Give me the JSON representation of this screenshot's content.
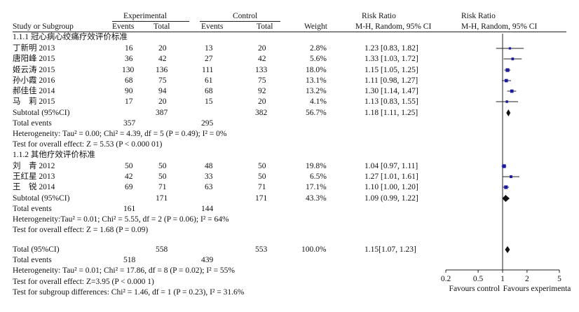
{
  "header": {
    "experimental": "Experimental",
    "control": "Control",
    "risk_ratio": "Risk Ratio",
    "risk_ratio_plot": "Risk Ratio",
    "study": "Study or Subgroup",
    "events_e": "Events",
    "total_e": "Total",
    "events_c": "Events",
    "total_c": "Total",
    "weight": "Weight",
    "method": "M-H, Random, 95% CI",
    "method_plot": "M-H, Random, 95% CI"
  },
  "groups": [
    {
      "title": "1.1.1  冠心病心绞痛疗效评价标准",
      "studies": [
        {
          "name": "丁新明 2013",
          "ee": "16",
          "te": "20",
          "ec": "13",
          "tc": "20",
          "w": "2.8%",
          "ci": "1.23 [0.83, 1.82]"
        },
        {
          "name": "唐阳峰 2015",
          "ee": "36",
          "te": "42",
          "ec": "27",
          "tc": "42",
          "w": "5.6%",
          "ci": "1.33 [1.03, 1.72]"
        },
        {
          "name": "姬云涛 2015",
          "ee": "130",
          "te": "136",
          "ec": "111",
          "tc": "133",
          "w": "18.0%",
          "ci": "1.15 [1.05, 1.25]"
        },
        {
          "name": "孙小霞 2016",
          "ee": "68",
          "te": "75",
          "ec": "61",
          "tc": "75",
          "w": "13.1%",
          "ci": "1.11 [0.98, 1.27]"
        },
        {
          "name": "郝佳佳 2014",
          "ee": "90",
          "te": "94",
          "ec": "68",
          "tc": "92",
          "w": "13.2%",
          "ci": "1.30 [1.14, 1.47]"
        },
        {
          "name": "马　莉 2015",
          "ee": "17",
          "te": "20",
          "ec": "15",
          "tc": "20",
          "w": "4.1%",
          "ci": "1.13 [0.83, 1.55]"
        }
      ],
      "subtotal": {
        "label": "Subtotal (95%CI)",
        "te": "387",
        "tc": "382",
        "w": "56.7%",
        "ci": "1.18 [1.11, 1.25]"
      },
      "total_events": {
        "label": "Total events",
        "ee": "357",
        "ec": "295"
      },
      "heterogeneity": "Heterogeneity: Tau² = 0.00; Chi² = 4.39, df = 5 (P = 0.49); I² = 0%",
      "overall": "Test for overall effect: Z = 5.53 (P < 0.000 01)"
    },
    {
      "title": "1.1.2  其他疗效评价标准",
      "studies": [
        {
          "name": "刘　青 2012",
          "ee": "50",
          "te": "50",
          "ec": "48",
          "tc": "50",
          "w": "19.8%",
          "ci": "1.04 [0.97, 1.11]"
        },
        {
          "name": "王红星 2013",
          "ee": "42",
          "te": "50",
          "ec": "33",
          "tc": "50",
          "w": "6.5%",
          "ci": "1.27 [1.01, 1.61]"
        },
        {
          "name": "王　锐 2014",
          "ee": "69",
          "te": "71",
          "ec": "63",
          "tc": "71",
          "w": "17.1%",
          "ci": "1.10 [1.00, 1.20]"
        }
      ],
      "subtotal": {
        "label": "Subtotal (95%CI)",
        "te": "171",
        "tc": "171",
        "w": "43.3%",
        "ci": "1.09 (0.99, 1.22]"
      },
      "total_events": {
        "label": "Total events",
        "ee": "161",
        "ec": "144"
      },
      "heterogeneity": "Heterogeneity:Tau² = 0.01; Chi² = 5.55, df = 2 (P = 0.06); I² = 64%",
      "overall": "Test for overall effect: Z = 1.68 (P = 0.09)"
    }
  ],
  "total": {
    "label": "Total (95%CI)",
    "te": "558",
    "tc": "553",
    "w": "100.0%",
    "ci": "1.15[1.07, 1.23]"
  },
  "total_events": {
    "label": "Total events",
    "ee": "518",
    "ec": "439"
  },
  "heterogeneity": "Heterogeneity: Tau² = 0.01; Chi² = 17.86, df = 8 (P = 0.02); I² = 55%",
  "overall": "Test for overall effect: Z=3.95 (P < 0.000 1)",
  "subgroup_diff": "Test for subgroup differences: Chi² = 1.46, df = 1 (P = 0.23), I² = 31.6%",
  "axis": {
    "ticks": [
      0.2,
      0.5,
      1,
      2,
      5
    ],
    "tick_labels": [
      "0.2",
      "0.5",
      "1",
      "2",
      "5"
    ],
    "favours_left": "Favours control",
    "favours_right": "Favours experimenta"
  },
  "chart_data": {
    "type": "forest",
    "scale": "log",
    "xlim": [
      0.2,
      5
    ],
    "reference_line": 1,
    "marker_color": "#1a1aa8",
    "studies": [
      {
        "name": "丁新明 2013",
        "rr": 1.23,
        "lo": 0.83,
        "hi": 1.82,
        "weight": 2.8
      },
      {
        "name": "唐阳峰 2015",
        "rr": 1.33,
        "lo": 1.03,
        "hi": 1.72,
        "weight": 5.6
      },
      {
        "name": "姬云涛 2015",
        "rr": 1.15,
        "lo": 1.05,
        "hi": 1.25,
        "weight": 18.0
      },
      {
        "name": "孙小霞 2016",
        "rr": 1.11,
        "lo": 0.98,
        "hi": 1.27,
        "weight": 13.1
      },
      {
        "name": "郝佳佳 2014",
        "rr": 1.3,
        "lo": 1.14,
        "hi": 1.47,
        "weight": 13.2
      },
      {
        "name": "马　莉 2015",
        "rr": 1.13,
        "lo": 0.83,
        "hi": 1.55,
        "weight": 4.1
      },
      {
        "name": "刘　青 2012",
        "rr": 1.04,
        "lo": 0.97,
        "hi": 1.11,
        "weight": 19.8
      },
      {
        "name": "王红星 2013",
        "rr": 1.27,
        "lo": 1.01,
        "hi": 1.61,
        "weight": 6.5
      },
      {
        "name": "王　锐 2014",
        "rr": 1.1,
        "lo": 1.0,
        "hi": 1.2,
        "weight": 17.1
      }
    ],
    "summaries": [
      {
        "name": "Subtotal 1.1.1",
        "rr": 1.18,
        "lo": 1.11,
        "hi": 1.25
      },
      {
        "name": "Subtotal 1.1.2",
        "rr": 1.09,
        "lo": 0.99,
        "hi": 1.22
      },
      {
        "name": "Total",
        "rr": 1.15,
        "lo": 1.07,
        "hi": 1.23
      }
    ]
  }
}
